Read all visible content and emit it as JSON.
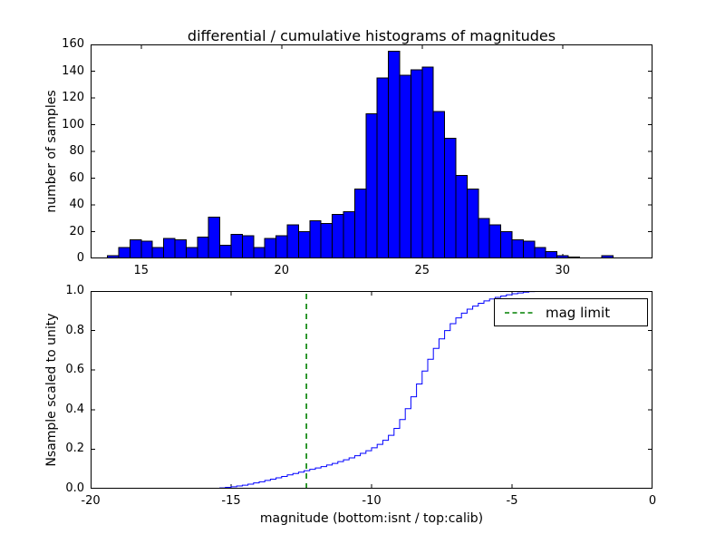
{
  "figure": {
    "background": "#ffffff"
  },
  "colors": {
    "hist_fill": "#0000ff",
    "hist_edge": "#000000",
    "step_line": "#0000ff",
    "vline": "#008000",
    "axis": "#000000"
  },
  "chart_data": [
    {
      "type": "bar",
      "title": "differential / cumulative histograms of magnitudes",
      "ylabel": "number of samples",
      "bin_start": 13.8,
      "bin_width": 0.4,
      "values": [
        2,
        8,
        14,
        13,
        8,
        15,
        14,
        8,
        16,
        31,
        10,
        18,
        17,
        8,
        15,
        17,
        25,
        20,
        28,
        26,
        33,
        35,
        52,
        108,
        135,
        155,
        137,
        141,
        143,
        110,
        90,
        62,
        52,
        30,
        25,
        20,
        14,
        13,
        8,
        5,
        2,
        1,
        0,
        0,
        2,
        0,
        0
      ],
      "xlim": [
        13.2,
        33.2
      ],
      "ylim": [
        0,
        160
      ],
      "xticks": [
        15,
        20,
        25,
        30
      ],
      "xtick_labels": [
        "15",
        "20",
        "25",
        "30"
      ],
      "yticks": [
        0,
        20,
        40,
        60,
        80,
        100,
        120,
        140,
        160
      ],
      "ytick_labels": [
        "0",
        "20",
        "40",
        "60",
        "80",
        "100",
        "120",
        "140",
        "160"
      ]
    },
    {
      "type": "line",
      "style": "step",
      "xlabel": "magnitude (bottom:isnt / top:calib)",
      "ylabel": "Nsample scaled to unity",
      "points": [
        [
          -16,
          0
        ],
        [
          -15.6,
          0.002
        ],
        [
          -15.4,
          0.004
        ],
        [
          -15.2,
          0.007
        ],
        [
          -15,
          0.01
        ],
        [
          -14.8,
          0.014
        ],
        [
          -14.6,
          0.018
        ],
        [
          -14.4,
          0.023
        ],
        [
          -14.2,
          0.029
        ],
        [
          -14,
          0.035
        ],
        [
          -13.8,
          0.042
        ],
        [
          -13.6,
          0.048
        ],
        [
          -13.4,
          0.055
        ],
        [
          -13.2,
          0.062
        ],
        [
          -13,
          0.07
        ],
        [
          -12.8,
          0.077
        ],
        [
          -12.6,
          0.084
        ],
        [
          -12.4,
          0.091
        ],
        [
          -12.2,
          0.098
        ],
        [
          -12,
          0.105
        ],
        [
          -11.8,
          0.112
        ],
        [
          -11.6,
          0.12
        ],
        [
          -11.4,
          0.128
        ],
        [
          -11.2,
          0.137
        ],
        [
          -11,
          0.146
        ],
        [
          -10.8,
          0.156
        ],
        [
          -10.6,
          0.167
        ],
        [
          -10.4,
          0.179
        ],
        [
          -10.2,
          0.192
        ],
        [
          -10,
          0.207
        ],
        [
          -9.8,
          0.224
        ],
        [
          -9.6,
          0.245
        ],
        [
          -9.4,
          0.27
        ],
        [
          -9.2,
          0.305
        ],
        [
          -9,
          0.35
        ],
        [
          -8.8,
          0.405
        ],
        [
          -8.6,
          0.465
        ],
        [
          -8.4,
          0.53
        ],
        [
          -8.2,
          0.595
        ],
        [
          -8,
          0.655
        ],
        [
          -7.8,
          0.71
        ],
        [
          -7.6,
          0.758
        ],
        [
          -7.4,
          0.8
        ],
        [
          -7.2,
          0.835
        ],
        [
          -7,
          0.864
        ],
        [
          -6.8,
          0.888
        ],
        [
          -6.6,
          0.908
        ],
        [
          -6.4,
          0.924
        ],
        [
          -6.2,
          0.938
        ],
        [
          -6,
          0.95
        ],
        [
          -5.8,
          0.96
        ],
        [
          -5.6,
          0.968
        ],
        [
          -5.4,
          0.975
        ],
        [
          -5.2,
          0.981
        ],
        [
          -5,
          0.986
        ],
        [
          -4.8,
          0.99
        ],
        [
          -4.6,
          0.994
        ],
        [
          -4.4,
          0.997
        ],
        [
          -4.2,
          0.999
        ],
        [
          -4,
          1
        ]
      ],
      "xlim": [
        -20,
        0
      ],
      "ylim": [
        0,
        1
      ],
      "xticks": [
        -20,
        -15,
        -10,
        -5,
        0
      ],
      "xtick_labels": [
        "-20",
        "-15",
        "-10",
        "-5",
        "0"
      ],
      "yticks": [
        0,
        0.2,
        0.4,
        0.6,
        0.8,
        1
      ],
      "ytick_labels": [
        "0.0",
        "0.2",
        "0.4",
        "0.6",
        "0.8",
        "1.0"
      ],
      "vline": {
        "x": -12.32,
        "label": "mag limit",
        "color": "#008000",
        "linestyle": "dashed"
      },
      "legend": {
        "position": "upper right",
        "entries": [
          "mag limit"
        ]
      }
    }
  ]
}
